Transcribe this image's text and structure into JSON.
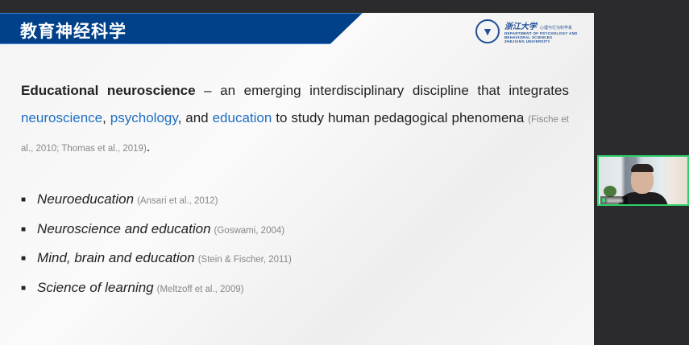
{
  "slide": {
    "title": "教育神经科学",
    "logo": {
      "university_cn": "浙江大学",
      "department_cn": "心理与行为科学系",
      "department_en_1": "DEPARTMENT OF PSYCHOLOGY AND",
      "department_en_2": "BEHAVIORAL SCIENCES",
      "university_en": "ZHEJIANG UNIVERSITY"
    },
    "paragraph": {
      "term": "Educational neuroscience",
      "text1": " – an emerging interdisciplinary discipline that integrates ",
      "link1": "neuroscience",
      "sep1": ", ",
      "link2": "psychology",
      "sep2": ", and ",
      "link3": "education",
      "text2": " to study human pedagogical phenomena ",
      "citation": "(Fische et al., 2010; Thomas et al., 2019)",
      "end": "."
    },
    "bullets": [
      {
        "label": "Neuroeducation",
        "citation": "(Ansari et al., 2012)"
      },
      {
        "label": "Neuroscience and education",
        "citation": "(Goswami, 2004)"
      },
      {
        "label": "Mind, brain and education",
        "citation": "(Stein & Fischer, 2011)"
      },
      {
        "label": "Science of learning",
        "citation": "(Meltzoff et al., 2009)"
      }
    ],
    "bullet_glyph": "■"
  },
  "colors": {
    "header_band": "#004189",
    "link_blue": "#1f6fc0",
    "active_speaker": "#2fd06a"
  },
  "video": {
    "mic_icon": "microphone-icon"
  }
}
